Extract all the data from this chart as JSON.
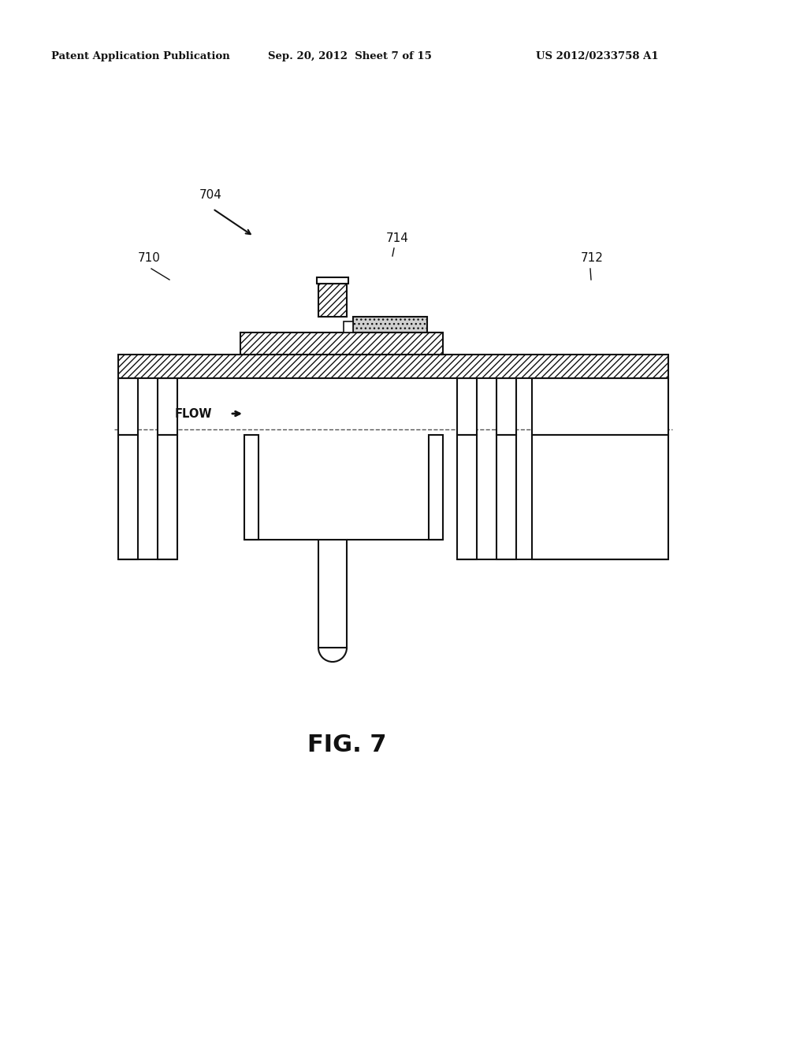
{
  "bg_color": "#ffffff",
  "line_color": "#111111",
  "header_text": "Patent Application Publication",
  "header_date": "Sep. 20, 2012  Sheet 7 of 15",
  "header_patent": "US 2012/0233758 A1",
  "fig_label": "FIG. 7",
  "ref_704": "704",
  "ref_710": "710",
  "ref_712": "712",
  "ref_714": "714",
  "flow_label": "FLOW"
}
